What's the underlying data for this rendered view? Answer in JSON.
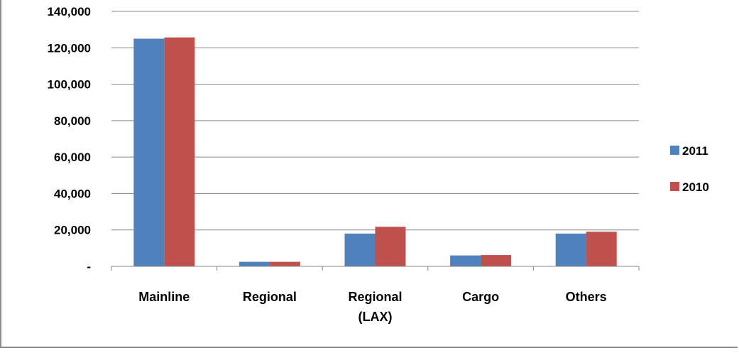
{
  "chart_data": {
    "type": "bar",
    "title": "",
    "xlabel": "",
    "ylabel": "",
    "categories": [
      [
        "Mainline"
      ],
      [
        "Regional"
      ],
      [
        "Regional",
        "(LAX)"
      ],
      [
        "Cargo"
      ],
      [
        "Others"
      ]
    ],
    "series": [
      {
        "name": "2011",
        "color": "#4f81bd",
        "values": [
          125000,
          2500,
          18000,
          6000,
          18000
        ]
      },
      {
        "name": "2010",
        "color": "#c0504d",
        "values": [
          125700,
          2500,
          21700,
          6200,
          19000
        ]
      }
    ],
    "ylim": [
      0,
      140000
    ],
    "yticks": [
      {
        "value": 0,
        "label": "-"
      },
      {
        "value": 20000,
        "label": "20,000"
      },
      {
        "value": 40000,
        "label": "40,000"
      },
      {
        "value": 60000,
        "label": "60,000"
      },
      {
        "value": 80000,
        "label": "80,000"
      },
      {
        "value": 100000,
        "label": "100,000"
      },
      {
        "value": 120000,
        "label": "120,000"
      },
      {
        "value": 140000,
        "label": "140,000"
      }
    ],
    "grid": true,
    "legend_position": "right",
    "gridline_color": "#878787",
    "axis_color": "#878787"
  }
}
